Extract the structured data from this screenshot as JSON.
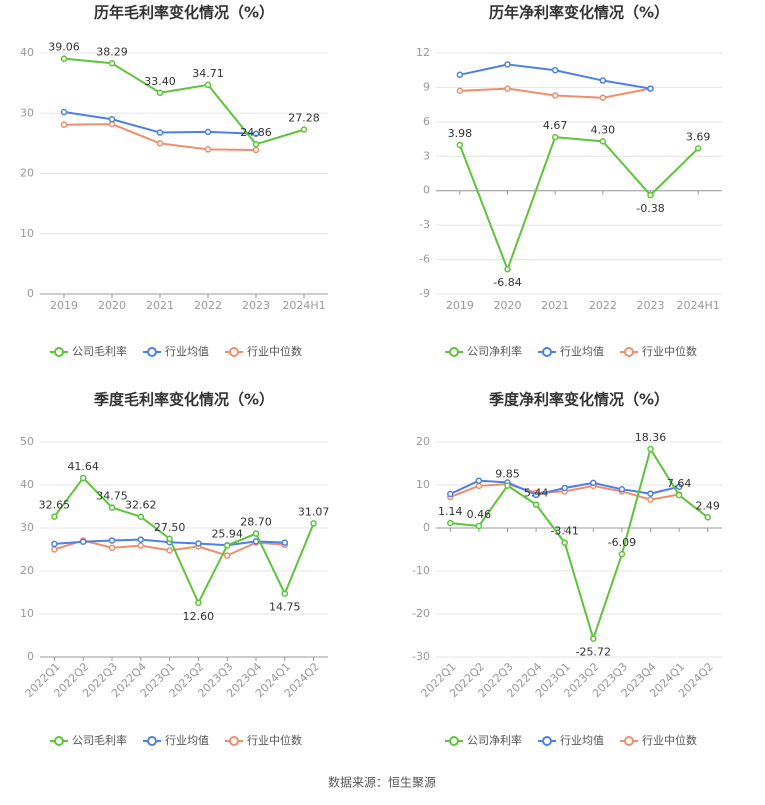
{
  "source_text": "数据来源：恒生聚源",
  "colors": {
    "company": "#5dc43a",
    "industry_avg": "#4d7fe6",
    "industry_median": "#f08d6c",
    "axis": "#999999",
    "grid": "#e5e5e5",
    "title": "#333333",
    "label": "#333333"
  },
  "chart_data": [
    {
      "type": "line",
      "title": "历年毛利率变化情况（%）",
      "categories": [
        "2019",
        "2020",
        "2021",
        "2022",
        "2023",
        "2024H1"
      ],
      "ylim": [
        0,
        40
      ],
      "yticks": [
        0,
        10,
        20,
        30,
        40
      ],
      "grid": true,
      "legend_position": "bottom",
      "series": [
        {
          "name": "公司毛利率",
          "values": [
            39.06,
            38.29,
            33.4,
            34.71,
            24.86,
            27.28
          ],
          "labels": [
            "39.06",
            "38.29",
            "33.40",
            "34.71",
            "24.86",
            "27.28"
          ]
        },
        {
          "name": "行业均值",
          "values": [
            30.2,
            29.0,
            26.8,
            26.9,
            26.6,
            null
          ]
        },
        {
          "name": "行业中位数",
          "values": [
            28.1,
            28.2,
            25.0,
            24.0,
            23.9,
            null
          ]
        }
      ]
    },
    {
      "type": "line",
      "title": "历年净利率变化情况（%）",
      "categories": [
        "2019",
        "2020",
        "2021",
        "2022",
        "2023",
        "2024H1"
      ],
      "ylim": [
        -9,
        12
      ],
      "yticks": [
        -9,
        -6,
        -3,
        0,
        3,
        6,
        9,
        12
      ],
      "grid": true,
      "legend_position": "bottom",
      "series": [
        {
          "name": "公司净利率",
          "values": [
            3.98,
            -6.84,
            4.67,
            4.3,
            -0.38,
            3.69
          ],
          "labels": [
            "3.98",
            "-6.84",
            "4.67",
            "4.30",
            "-0.38",
            "3.69"
          ]
        },
        {
          "name": "行业均值",
          "values": [
            10.1,
            11.0,
            10.5,
            9.6,
            8.9,
            null
          ]
        },
        {
          "name": "行业中位数",
          "values": [
            8.7,
            8.9,
            8.3,
            8.1,
            8.9,
            null
          ]
        }
      ]
    },
    {
      "type": "line",
      "title": "季度毛利率变化情况（%）",
      "categories": [
        "2022Q1",
        "2022Q2",
        "2022Q3",
        "2022Q4",
        "2023Q1",
        "2023Q2",
        "2023Q3",
        "2023Q4",
        "2024Q1",
        "2024Q2"
      ],
      "ylim": [
        0,
        50
      ],
      "yticks": [
        0,
        10,
        20,
        30,
        40,
        50
      ],
      "grid": true,
      "legend_position": "bottom",
      "series": [
        {
          "name": "公司毛利率",
          "values": [
            32.65,
            41.64,
            34.75,
            32.62,
            27.5,
            12.6,
            25.94,
            28.7,
            14.75,
            31.07
          ],
          "labels": [
            "32.65",
            "41.64",
            "34.75",
            "32.62",
            "27.50",
            "12.60",
            "25.94",
            "28.70",
            "14.75",
            "31.07"
          ]
        },
        {
          "name": "行业均值",
          "values": [
            26.3,
            26.8,
            27.1,
            27.3,
            26.7,
            26.4,
            26.0,
            26.9,
            26.6,
            null
          ]
        },
        {
          "name": "行业中位数",
          "values": [
            25.0,
            27.1,
            25.4,
            25.9,
            24.8,
            25.7,
            23.6,
            26.6,
            26.1,
            null
          ]
        }
      ]
    },
    {
      "type": "line",
      "title": "季度净利率变化情况（%）",
      "categories": [
        "2022Q1",
        "2022Q2",
        "2022Q3",
        "2022Q4",
        "2023Q1",
        "2023Q2",
        "2023Q3",
        "2023Q4",
        "2024Q1",
        "2024Q2"
      ],
      "ylim": [
        -30,
        20
      ],
      "yticks": [
        -30,
        -20,
        -10,
        0,
        10,
        20
      ],
      "grid": true,
      "legend_position": "bottom",
      "series": [
        {
          "name": "公司净利率",
          "values": [
            1.14,
            0.46,
            9.85,
            5.44,
            -3.41,
            -25.72,
            -6.09,
            18.36,
            7.64,
            2.49
          ],
          "labels": [
            "1.14",
            "0.46",
            "9.85",
            "5.44",
            "-3.41",
            "-25.72",
            "-6.09",
            "18.36",
            "7.64",
            "2.49"
          ]
        },
        {
          "name": "行业均值",
          "values": [
            7.9,
            11.0,
            10.6,
            7.7,
            9.3,
            10.5,
            9.0,
            8.0,
            9.6,
            null
          ]
        },
        {
          "name": "行业中位数",
          "values": [
            7.2,
            9.8,
            10.2,
            8.2,
            8.5,
            9.8,
            8.5,
            6.6,
            7.8,
            null
          ]
        }
      ]
    }
  ]
}
